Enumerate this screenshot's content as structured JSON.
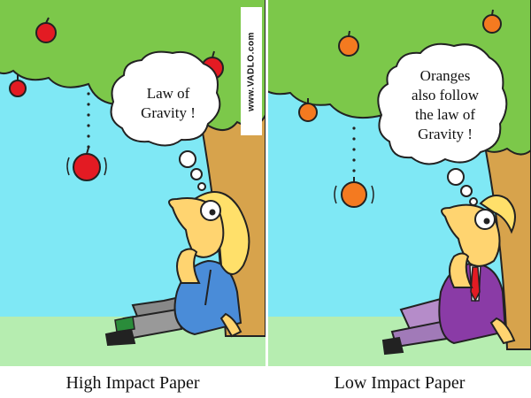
{
  "left_panel": {
    "thought": [
      "Law of",
      "Gravity !"
    ],
    "caption": "High Impact Paper",
    "watermark": "www.VADLO.com",
    "fruit_color": "#e31b23"
  },
  "right_panel": {
    "thought": [
      "Oranges",
      "also follow",
      "the law of",
      "Gravity !"
    ],
    "caption": "Low Impact Paper",
    "fruit_color": "#f47a20"
  },
  "colors": {
    "sky": "#7fe8f5",
    "grass": "#b6edb0",
    "foliage": "#7cc84a",
    "trunk": "#d7a34c"
  }
}
